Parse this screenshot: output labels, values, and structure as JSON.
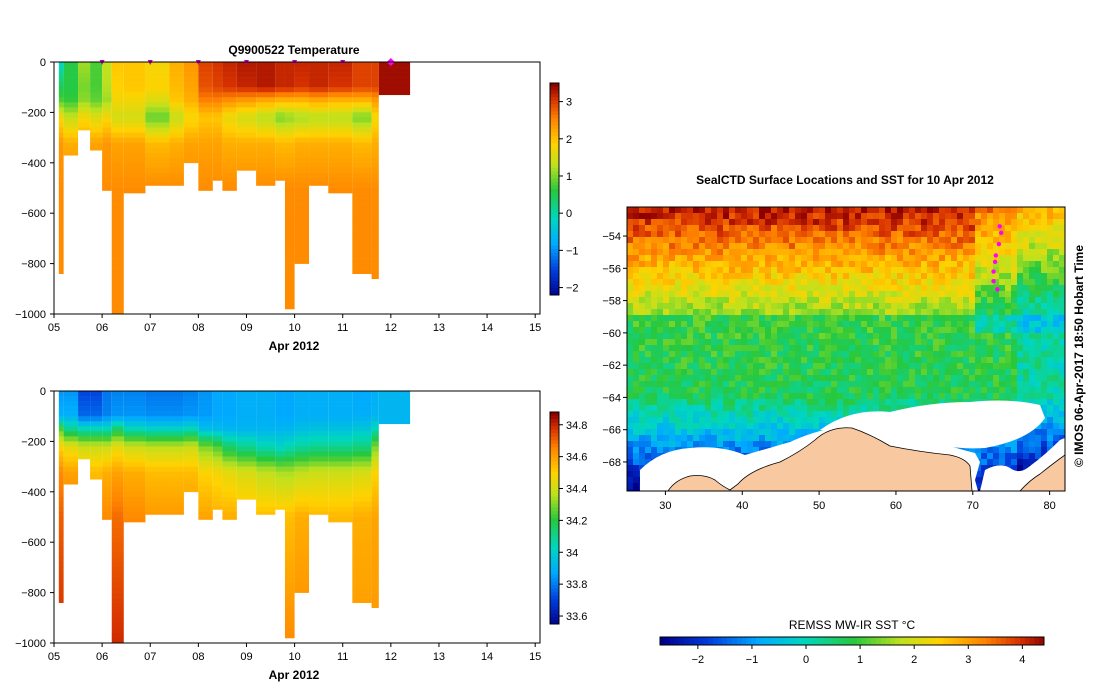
{
  "figure": {
    "vertical_text": "© IMOS 06-Apr-2017 18:50 Hobart Time"
  },
  "chart_data": [
    {
      "type": "heatmap",
      "title": "Q9900522  Temperature",
      "xlabel": "Apr 2012",
      "x_ticks": [
        "05",
        "06",
        "07",
        "08",
        "09",
        "10",
        "11",
        "12",
        "13",
        "14",
        "15"
      ],
      "xlim": [
        5,
        15.1
      ],
      "y_ticks": [
        0,
        -200,
        -400,
        -600,
        -800,
        -1000
      ],
      "ylim": [
        -1000,
        0
      ],
      "profile_markers": [
        6,
        7,
        8,
        9,
        10,
        11
      ],
      "current_marker": 12,
      "colorbar_ticks": [
        3,
        2,
        1,
        0,
        -1,
        -2
      ],
      "colorbar_range": [
        -2.2,
        3.5
      ],
      "profiles": [
        {
          "x0": 5.1,
          "x1": 5.2,
          "depth": 840,
          "v": [
            -0.2,
            0.5,
            0.8,
            1.8,
            2.4,
            2.5,
            2.5
          ]
        },
        {
          "x0": 5.2,
          "x1": 5.5,
          "depth": 370,
          "v": [
            0.6,
            0.6,
            0.7,
            1.4,
            2.2,
            2.5,
            2.5
          ]
        },
        {
          "x0": 5.5,
          "x1": 5.75,
          "depth": 270,
          "v": [
            1.2,
            1.0,
            1.1,
            1.8,
            2.3,
            2.5,
            2.5
          ]
        },
        {
          "x0": 5.75,
          "x1": 6.0,
          "depth": 350,
          "v": [
            0.8,
            0.8,
            0.9,
            1.6,
            2.3,
            2.5,
            2.5
          ]
        },
        {
          "x0": 6.0,
          "x1": 6.2,
          "depth": 510,
          "v": [
            1.4,
            1.3,
            1.2,
            1.8,
            2.4,
            2.5,
            2.5
          ]
        },
        {
          "x0": 6.2,
          "x1": 6.45,
          "depth": 1000,
          "v": [
            2.0,
            1.9,
            1.8,
            1.5,
            2.3,
            2.5,
            2.5
          ]
        },
        {
          "x0": 6.45,
          "x1": 6.9,
          "depth": 520,
          "v": [
            2.0,
            2.0,
            1.8,
            1.5,
            2.3,
            2.5,
            2.5
          ]
        },
        {
          "x0": 6.9,
          "x1": 7.4,
          "depth": 490,
          "v": [
            1.8,
            1.9,
            1.6,
            0.9,
            2.1,
            2.5,
            2.5
          ]
        },
        {
          "x0": 7.4,
          "x1": 7.7,
          "depth": 490,
          "v": [
            2.2,
            2.1,
            2.0,
            1.4,
            2.2,
            2.5,
            2.5
          ]
        },
        {
          "x0": 7.7,
          "x1": 8.0,
          "depth": 400,
          "v": [
            2.4,
            2.3,
            2.2,
            1.8,
            2.3,
            2.5,
            2.5
          ]
        },
        {
          "x0": 8.0,
          "x1": 8.3,
          "depth": 510,
          "v": [
            3.0,
            2.9,
            2.6,
            2.0,
            2.3,
            2.5,
            2.5
          ]
        },
        {
          "x0": 8.3,
          "x1": 8.5,
          "depth": 470,
          "v": [
            3.1,
            3.0,
            2.6,
            2.0,
            2.3,
            2.5,
            2.5
          ]
        },
        {
          "x0": 8.5,
          "x1": 8.8,
          "depth": 510,
          "v": [
            3.2,
            3.1,
            2.5,
            1.7,
            2.2,
            2.5,
            2.5
          ]
        },
        {
          "x0": 8.8,
          "x1": 9.2,
          "depth": 430,
          "v": [
            3.3,
            3.2,
            2.4,
            1.5,
            2.2,
            2.5,
            2.5
          ]
        },
        {
          "x0": 9.2,
          "x1": 9.6,
          "depth": 490,
          "v": [
            3.3,
            3.3,
            2.3,
            1.3,
            2.2,
            2.5,
            2.5
          ]
        },
        {
          "x0": 9.6,
          "x1": 9.8,
          "depth": 470,
          "v": [
            3.2,
            3.2,
            2.2,
            1.0,
            2.1,
            2.5,
            2.5
          ]
        },
        {
          "x0": 9.8,
          "x1": 10.0,
          "depth": 980,
          "v": [
            3.2,
            3.2,
            2.2,
            1.1,
            2.1,
            2.5,
            2.5
          ]
        },
        {
          "x0": 10.0,
          "x1": 10.3,
          "depth": 800,
          "v": [
            3.2,
            3.1,
            2.2,
            1.2,
            2.2,
            2.5,
            2.5
          ]
        },
        {
          "x0": 10.3,
          "x1": 10.7,
          "depth": 490,
          "v": [
            3.2,
            3.2,
            2.3,
            1.3,
            2.2,
            2.5,
            2.5
          ]
        },
        {
          "x0": 10.7,
          "x1": 11.2,
          "depth": 520,
          "v": [
            3.2,
            3.1,
            2.2,
            1.3,
            2.2,
            2.5,
            2.5
          ]
        },
        {
          "x0": 11.2,
          "x1": 11.6,
          "depth": 840,
          "v": [
            3.0,
            3.0,
            2.2,
            1.0,
            2.1,
            2.5,
            2.5
          ]
        },
        {
          "x0": 11.6,
          "x1": 11.75,
          "depth": 860,
          "v": [
            3.0,
            3.0,
            2.4,
            1.8,
            2.2,
            2.5,
            2.5
          ]
        },
        {
          "x0": 11.75,
          "x1": 12.4,
          "depth": 130,
          "v": [
            3.4,
            3.4,
            3.4
          ]
        }
      ]
    },
    {
      "type": "heatmap",
      "title": "",
      "xlabel": "Apr 2012",
      "x_ticks": [
        "05",
        "06",
        "07",
        "08",
        "09",
        "10",
        "11",
        "12",
        "13",
        "14",
        "15"
      ],
      "xlim": [
        5,
        15.1
      ],
      "y_ticks": [
        0,
        -200,
        -400,
        -600,
        -800,
        -1000
      ],
      "ylim": [
        -1000,
        0
      ],
      "colorbar_ticks": [
        34.8,
        34.6,
        34.4,
        34.2,
        34,
        33.8,
        33.6
      ],
      "colorbar_range": [
        33.55,
        34.88
      ],
      "profiles": [
        {
          "x0": 5.1,
          "x1": 5.2,
          "depth": 840,
          "v": [
            33.85,
            33.9,
            34.25,
            34.5,
            34.65,
            34.72,
            34.8
          ]
        },
        {
          "x0": 5.2,
          "x1": 5.5,
          "depth": 370,
          "v": [
            33.85,
            33.9,
            34.1,
            34.45,
            34.6,
            34.68,
            34.7
          ]
        },
        {
          "x0": 5.5,
          "x1": 5.75,
          "depth": 270,
          "v": [
            33.72,
            33.78,
            34.05,
            34.4,
            34.55,
            34.6,
            34.6
          ]
        },
        {
          "x0": 5.75,
          "x1": 6.0,
          "depth": 350,
          "v": [
            33.72,
            33.78,
            34.05,
            34.4,
            34.55,
            34.6,
            34.6
          ]
        },
        {
          "x0": 6.0,
          "x1": 6.2,
          "depth": 510,
          "v": [
            33.8,
            33.82,
            34.05,
            34.4,
            34.58,
            34.65,
            34.7
          ]
        },
        {
          "x0": 6.2,
          "x1": 6.45,
          "depth": 1000,
          "v": [
            33.82,
            33.85,
            34.15,
            34.45,
            34.6,
            34.7,
            34.8
          ]
        },
        {
          "x0": 6.45,
          "x1": 6.9,
          "depth": 520,
          "v": [
            33.82,
            33.85,
            34.05,
            34.4,
            34.58,
            34.65,
            34.7
          ]
        },
        {
          "x0": 6.9,
          "x1": 7.4,
          "depth": 490,
          "v": [
            33.8,
            33.84,
            34.02,
            34.38,
            34.55,
            34.62,
            34.65
          ]
        },
        {
          "x0": 7.4,
          "x1": 7.7,
          "depth": 490,
          "v": [
            33.8,
            33.84,
            34.02,
            34.38,
            34.55,
            34.62,
            34.65
          ]
        },
        {
          "x0": 7.7,
          "x1": 8.0,
          "depth": 400,
          "v": [
            33.82,
            33.85,
            34.05,
            34.4,
            34.55,
            34.62,
            34.65
          ]
        },
        {
          "x0": 8.0,
          "x1": 8.3,
          "depth": 510,
          "v": [
            33.85,
            33.86,
            33.95,
            34.3,
            34.5,
            34.6,
            34.65
          ]
        },
        {
          "x0": 8.3,
          "x1": 8.5,
          "depth": 470,
          "v": [
            33.88,
            33.88,
            33.94,
            34.25,
            34.48,
            34.58,
            34.65
          ]
        },
        {
          "x0": 8.5,
          "x1": 8.8,
          "depth": 510,
          "v": [
            33.88,
            33.88,
            33.92,
            34.15,
            34.45,
            34.58,
            34.62
          ]
        },
        {
          "x0": 8.8,
          "x1": 9.2,
          "depth": 430,
          "v": [
            33.9,
            33.9,
            33.92,
            34.1,
            34.42,
            34.56,
            34.62
          ]
        },
        {
          "x0": 9.2,
          "x1": 9.6,
          "depth": 490,
          "v": [
            33.9,
            33.9,
            33.92,
            34.05,
            34.38,
            34.55,
            34.62
          ]
        },
        {
          "x0": 9.6,
          "x1": 9.8,
          "depth": 470,
          "v": [
            33.88,
            33.88,
            33.92,
            34.02,
            34.35,
            34.55,
            34.6
          ]
        },
        {
          "x0": 9.8,
          "x1": 10.0,
          "depth": 980,
          "v": [
            33.88,
            33.88,
            33.92,
            34.05,
            34.35,
            34.55,
            34.65
          ]
        },
        {
          "x0": 10.0,
          "x1": 10.3,
          "depth": 800,
          "v": [
            33.9,
            33.9,
            33.95,
            34.08,
            34.38,
            34.58,
            34.65
          ]
        },
        {
          "x0": 10.3,
          "x1": 10.7,
          "depth": 490,
          "v": [
            33.9,
            33.9,
            33.96,
            34.1,
            34.4,
            34.56,
            34.62
          ]
        },
        {
          "x0": 10.7,
          "x1": 11.2,
          "depth": 520,
          "v": [
            33.9,
            33.9,
            33.96,
            34.1,
            34.4,
            34.56,
            34.62
          ]
        },
        {
          "x0": 11.2,
          "x1": 11.6,
          "depth": 840,
          "v": [
            33.88,
            33.9,
            33.98,
            34.12,
            34.42,
            34.58,
            34.62
          ]
        },
        {
          "x0": 11.6,
          "x1": 11.75,
          "depth": 860,
          "v": [
            33.9,
            33.92,
            34.05,
            34.3,
            34.5,
            34.6,
            34.62
          ]
        },
        {
          "x0": 11.75,
          "x1": 12.4,
          "depth": 130,
          "v": [
            33.92,
            33.92,
            33.92
          ]
        }
      ]
    },
    {
      "type": "heatmap",
      "title": "SealCTD Surface Locations and SST for 10 Apr 2012",
      "x_ticks": [
        30,
        40,
        50,
        60,
        70,
        80
      ],
      "xlim": [
        25,
        82
      ],
      "y_ticks": [
        -54,
        -56,
        -58,
        -60,
        -62,
        -64,
        -66,
        -68
      ],
      "ylim": [
        -69.8,
        -52.2
      ],
      "colorbar_label": "REMSS MW-IR SST °C",
      "colorbar_ticks": [
        -2,
        -1,
        0,
        1,
        2,
        3,
        4
      ],
      "colorbar_range": [
        -2.7,
        4.4
      ],
      "track_points": [
        [
          73.5,
          -53.4
        ],
        [
          73.7,
          -53.8
        ],
        [
          73.4,
          -54.5
        ],
        [
          73.0,
          -55.2
        ],
        [
          72.9,
          -55.6
        ],
        [
          72.7,
          -56.2
        ],
        [
          72.7,
          -56.8
        ],
        [
          73.2,
          -57.3
        ]
      ]
    }
  ]
}
